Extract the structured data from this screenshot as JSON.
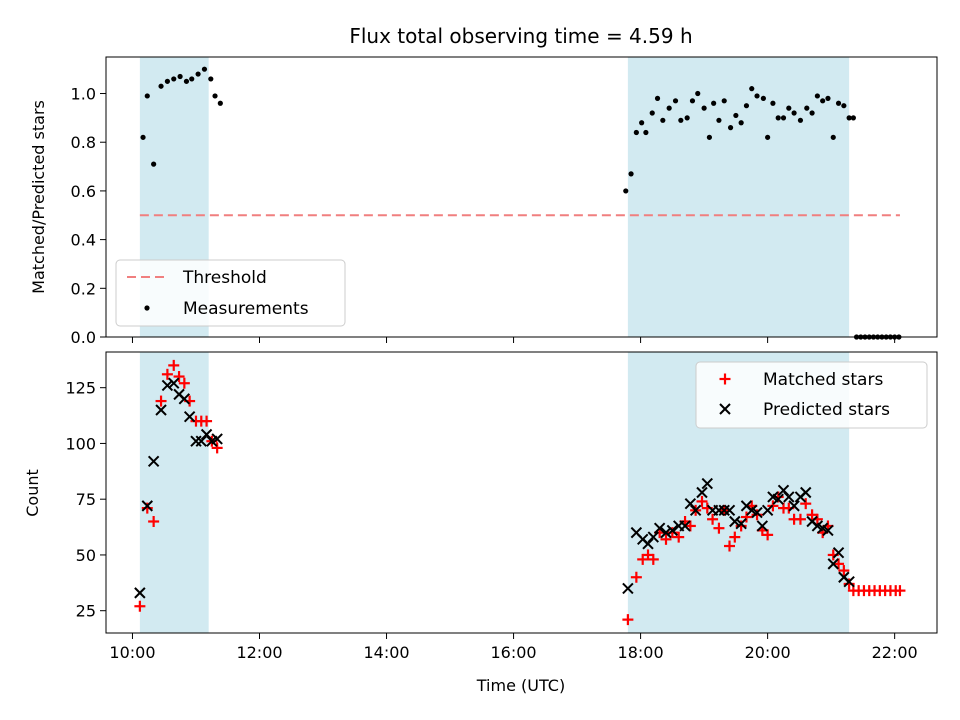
{
  "chart_data": {
    "title": "Flux total observing time = 4.59 h",
    "xlabel": "Time (UTC)",
    "xticks": [
      "10:00",
      "12:00",
      "14:00",
      "16:00",
      "18:00",
      "20:00",
      "22:00"
    ],
    "xlim": [
      "09:35",
      "22:40"
    ],
    "colors": {
      "observing_band": "#add8e6",
      "threshold": "#f07f7f",
      "measurements": "#000000",
      "matched": "#ff0000",
      "predicted": "#000000"
    },
    "observing_windows": [
      [
        "10:07",
        "11:12"
      ],
      [
        "17:48",
        "21:17"
      ]
    ],
    "panels": [
      {
        "type": "scatter",
        "ylabel": "Matched/Predicted stars",
        "ylim": [
          0,
          1.15
        ],
        "yticks": [
          "0.0",
          "0.2",
          "0.4",
          "0.6",
          "0.8",
          "1.0"
        ],
        "legend_position": "lower-left",
        "threshold": {
          "name": "Threshold",
          "value": 0.5,
          "x_range": [
            "10:07",
            "22:05"
          ]
        },
        "measurements": {
          "name": "Measurements",
          "points": [
            [
              "10:10",
              0.82
            ],
            [
              "10:14",
              0.99
            ],
            [
              "10:20",
              0.71
            ],
            [
              "10:27",
              1.03
            ],
            [
              "10:33",
              1.05
            ],
            [
              "10:39",
              1.06
            ],
            [
              "10:45",
              1.07
            ],
            [
              "10:51",
              1.05
            ],
            [
              "10:56",
              1.06
            ],
            [
              "11:02",
              1.08
            ],
            [
              "11:08",
              1.1
            ],
            [
              "11:14",
              1.06
            ],
            [
              "11:18",
              0.99
            ],
            [
              "11:23",
              0.96
            ],
            [
              "17:46",
              0.6
            ],
            [
              "17:51",
              0.67
            ],
            [
              "17:56",
              0.84
            ],
            [
              "18:01",
              0.88
            ],
            [
              "18:05",
              0.84
            ],
            [
              "18:11",
              0.92
            ],
            [
              "18:16",
              0.98
            ],
            [
              "18:21",
              0.89
            ],
            [
              "18:27",
              0.94
            ],
            [
              "18:33",
              0.97
            ],
            [
              "18:38",
              0.89
            ],
            [
              "18:44",
              0.9
            ],
            [
              "18:49",
              0.97
            ],
            [
              "18:54",
              1.0
            ],
            [
              "19:00",
              0.94
            ],
            [
              "19:05",
              0.82
            ],
            [
              "19:09",
              0.96
            ],
            [
              "19:14",
              0.89
            ],
            [
              "19:19",
              0.97
            ],
            [
              "19:25",
              0.86
            ],
            [
              "19:30",
              0.91
            ],
            [
              "19:35",
              0.88
            ],
            [
              "19:40",
              0.95
            ],
            [
              "19:45",
              1.02
            ],
            [
              "19:50",
              0.99
            ],
            [
              "19:56",
              0.98
            ],
            [
              "20:00",
              0.82
            ],
            [
              "20:05",
              0.96
            ],
            [
              "20:10",
              0.9
            ],
            [
              "20:15",
              0.9
            ],
            [
              "20:20",
              0.94
            ],
            [
              "20:25",
              0.92
            ],
            [
              "20:31",
              0.89
            ],
            [
              "20:37",
              0.94
            ],
            [
              "20:42",
              0.92
            ],
            [
              "20:47",
              0.99
            ],
            [
              "20:52",
              0.97
            ],
            [
              "20:57",
              0.98
            ],
            [
              "21:02",
              0.82
            ],
            [
              "21:07",
              0.96
            ],
            [
              "21:12",
              0.95
            ],
            [
              "21:17",
              0.9
            ],
            [
              "21:21",
              0.9
            ],
            [
              "21:24",
              0.0
            ],
            [
              "21:28",
              0.0
            ],
            [
              "21:32",
              0.0
            ],
            [
              "21:36",
              0.0
            ],
            [
              "21:40",
              0.0
            ],
            [
              "21:44",
              0.0
            ],
            [
              "21:48",
              0.0
            ],
            [
              "21:52",
              0.0
            ],
            [
              "21:56",
              0.0
            ],
            [
              "22:00",
              0.0
            ],
            [
              "22:04",
              0.0
            ]
          ]
        }
      },
      {
        "type": "scatter",
        "ylabel": "Count",
        "ylim": [
          15,
          141
        ],
        "yticks": [
          "25",
          "50",
          "75",
          "100",
          "125"
        ],
        "legend_position": "upper-right",
        "series": [
          {
            "name": "Matched stars",
            "marker": "plus",
            "points": [
              [
                "10:07",
                27
              ],
              [
                "10:14",
                71
              ],
              [
                "10:20",
                65
              ],
              [
                "10:27",
                119
              ],
              [
                "10:33",
                131
              ],
              [
                "10:39",
                135
              ],
              [
                "10:44",
                130
              ],
              [
                "10:49",
                127
              ],
              [
                "10:54",
                119
              ],
              [
                "11:00",
                110
              ],
              [
                "11:05",
                110
              ],
              [
                "11:10",
                110
              ],
              [
                "11:15",
                101
              ],
              [
                "11:20",
                98
              ],
              [
                "17:48",
                21
              ],
              [
                "17:56",
                40
              ],
              [
                "18:02",
                48
              ],
              [
                "18:07",
                50
              ],
              [
                "18:12",
                48
              ],
              [
                "18:18",
                60
              ],
              [
                "18:24",
                57
              ],
              [
                "18:30",
                60
              ],
              [
                "18:36",
                58
              ],
              [
                "18:42",
                65
              ],
              [
                "18:47",
                63
              ],
              [
                "18:52",
                70
              ],
              [
                "18:58",
                74
              ],
              [
                "19:03",
                71
              ],
              [
                "19:08",
                66
              ],
              [
                "19:14",
                62
              ],
              [
                "19:19",
                70
              ],
              [
                "19:24",
                54
              ],
              [
                "19:29",
                58
              ],
              [
                "19:35",
                63
              ],
              [
                "19:40",
                67
              ],
              [
                "19:45",
                72
              ],
              [
                "19:50",
                68
              ],
              [
                "19:55",
                61
              ],
              [
                "20:00",
                59
              ],
              [
                "20:05",
                72
              ],
              [
                "20:10",
                76
              ],
              [
                "20:15",
                71
              ],
              [
                "20:20",
                71
              ],
              [
                "20:25",
                66
              ],
              [
                "20:31",
                66
              ],
              [
                "20:36",
                73
              ],
              [
                "20:42",
                68
              ],
              [
                "20:47",
                66
              ],
              [
                "20:52",
                60
              ],
              [
                "20:57",
                63
              ],
              [
                "21:02",
                50
              ],
              [
                "21:07",
                46
              ],
              [
                "21:12",
                43
              ],
              [
                "21:17",
                37
              ],
              [
                "21:21",
                34
              ],
              [
                "21:26",
                34
              ],
              [
                "21:31",
                34
              ],
              [
                "21:36",
                34
              ],
              [
                "21:41",
                34
              ],
              [
                "21:46",
                34
              ],
              [
                "21:51",
                34
              ],
              [
                "21:56",
                34
              ],
              [
                "22:01",
                34
              ],
              [
                "22:05",
                34
              ]
            ]
          },
          {
            "name": "Predicted stars",
            "marker": "x",
            "points": [
              [
                "10:07",
                33
              ],
              [
                "10:14",
                72
              ],
              [
                "10:20",
                92
              ],
              [
                "10:27",
                115
              ],
              [
                "10:33",
                126
              ],
              [
                "10:39",
                127
              ],
              [
                "10:44",
                122
              ],
              [
                "10:49",
                120
              ],
              [
                "10:54",
                112
              ],
              [
                "11:00",
                101
              ],
              [
                "11:05",
                101
              ],
              [
                "11:10",
                104
              ],
              [
                "11:15",
                101
              ],
              [
                "11:20",
                102
              ],
              [
                "17:48",
                35
              ],
              [
                "17:56",
                60
              ],
              [
                "18:02",
                57
              ],
              [
                "18:07",
                55
              ],
              [
                "18:12",
                58
              ],
              [
                "18:18",
                62
              ],
              [
                "18:24",
                60
              ],
              [
                "18:30",
                61
              ],
              [
                "18:36",
                63
              ],
              [
                "18:42",
                63
              ],
              [
                "18:47",
                73
              ],
              [
                "18:52",
                70
              ],
              [
                "18:58",
                78
              ],
              [
                "19:03",
                82
              ],
              [
                "19:08",
                70
              ],
              [
                "19:14",
                70
              ],
              [
                "19:19",
                70
              ],
              [
                "19:24",
                70
              ],
              [
                "19:29",
                65
              ],
              [
                "19:35",
                64
              ],
              [
                "19:40",
                72
              ],
              [
                "19:45",
                70
              ],
              [
                "19:50",
                69
              ],
              [
                "19:55",
                63
              ],
              [
                "20:00",
                70
              ],
              [
                "20:05",
                76
              ],
              [
                "20:10",
                75
              ],
              [
                "20:15",
                79
              ],
              [
                "20:20",
                76
              ],
              [
                "20:25",
                72
              ],
              [
                "20:31",
                76
              ],
              [
                "20:36",
                78
              ],
              [
                "20:42",
                65
              ],
              [
                "20:47",
                63
              ],
              [
                "20:52",
                62
              ],
              [
                "20:57",
                61
              ],
              [
                "21:02",
                46
              ],
              [
                "21:07",
                51
              ],
              [
                "21:12",
                40
              ],
              [
                "21:17",
                38
              ]
            ]
          }
        ]
      }
    ]
  }
}
